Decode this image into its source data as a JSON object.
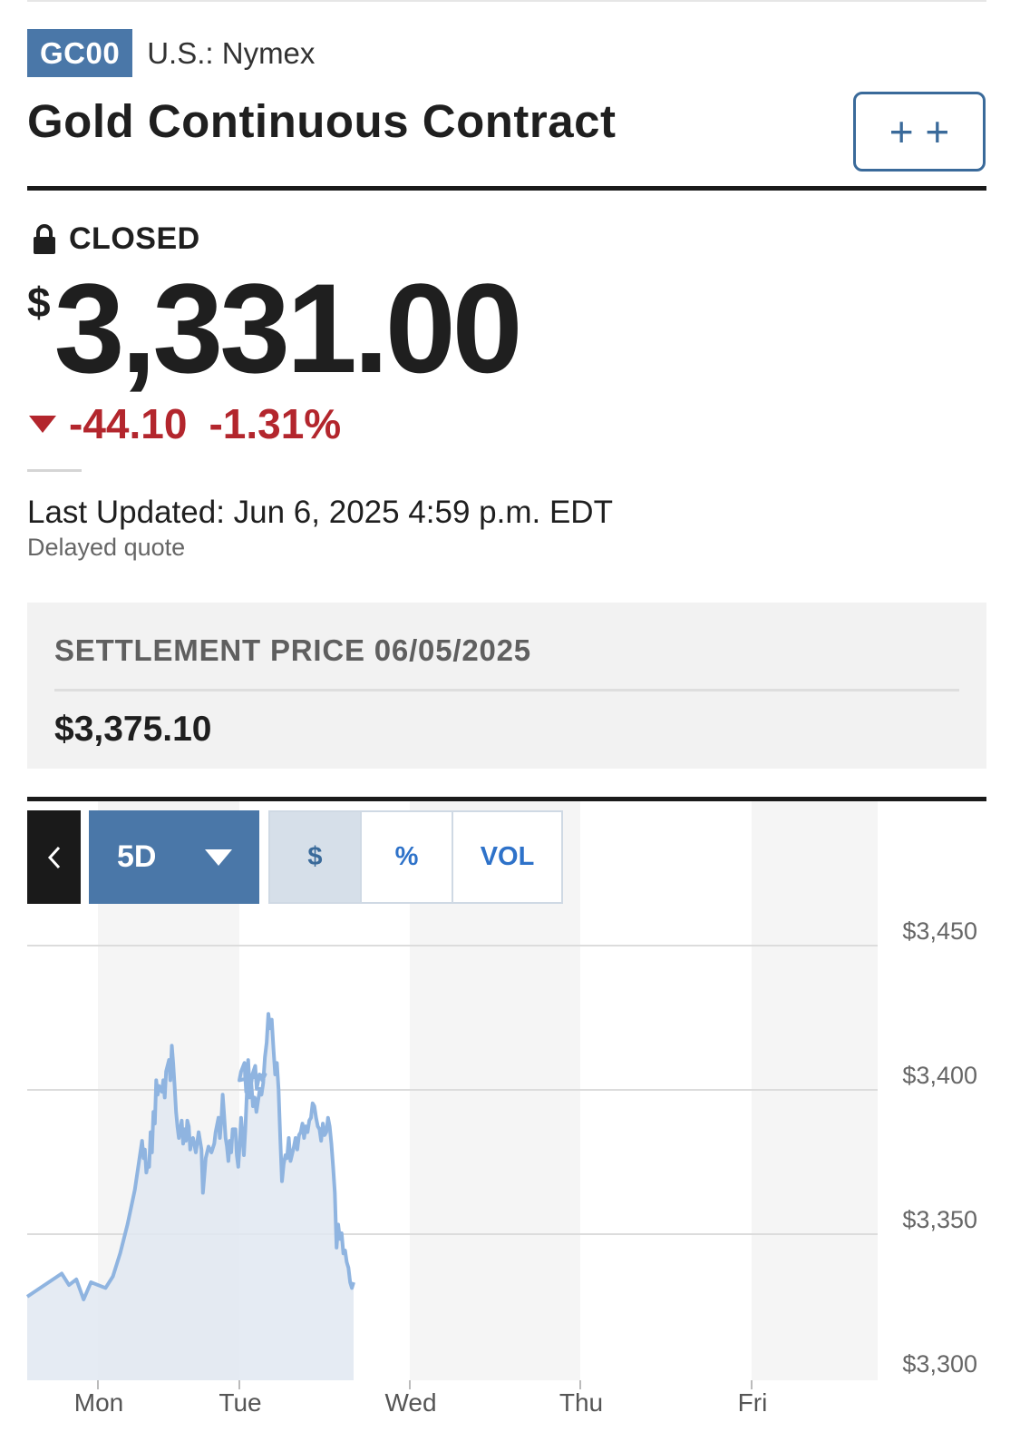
{
  "ticker": {
    "symbol": "GC00",
    "exchange": "U.S.: Nymex"
  },
  "title": "Gold Continuous Contract",
  "watchlist_button": {
    "label": "+ +"
  },
  "quote": {
    "status": "CLOSED",
    "currency_symbol": "$",
    "price": "3,331.00",
    "change": "-44.10",
    "change_percent": "-1.31%",
    "last_updated": "Last Updated: Jun 6, 2025 4:59 p.m. EDT",
    "delay_note": "Delayed quote"
  },
  "settlement": {
    "label": "SETTLEMENT PRICE 06/05/2025",
    "value": "$3,375.10"
  },
  "chart_controls": {
    "range_label": "5D",
    "segments": [
      {
        "label": "$",
        "selected": true
      },
      {
        "label": "%",
        "selected": false
      },
      {
        "label": "VOL",
        "selected": false
      }
    ]
  },
  "colors": {
    "brand_blue": "#4a77a8",
    "negative": "#b3262d",
    "line": "#8fb4e0",
    "area": "#e1e8f1"
  },
  "icons": {
    "status": "lock-icon",
    "change": "down-triangle-icon",
    "back": "chevron-left-icon",
    "range": "caret-down-icon"
  },
  "chart_data": {
    "type": "area",
    "x_labels": [
      "Mon",
      "Tue",
      "Wed",
      "Thu",
      "Fri"
    ],
    "y_ticks": [
      "$3,450",
      "$3,400",
      "$3,350",
      "$3,300"
    ],
    "ylim": [
      3300,
      3450
    ],
    "grid": true,
    "series": [
      {
        "values": [
          [
            0.0,
            3323
          ],
          [
            0.01,
            3331
          ],
          [
            0.02,
            3327
          ],
          [
            0.03,
            3329
          ],
          [
            0.04,
            3322
          ],
          [
            0.05,
            3328
          ],
          [
            0.07,
            3326
          ],
          [
            0.08,
            3330
          ],
          [
            0.09,
            3338
          ],
          [
            0.1,
            3348
          ],
          [
            0.11,
            3360
          ],
          [
            0.12,
            3377
          ],
          [
            0.13,
            3371
          ],
          [
            0.14,
            3374
          ],
          [
            0.15,
            3366
          ],
          [
            0.16,
            3369
          ],
          [
            0.17,
            3368
          ],
          [
            0.18,
            3380
          ],
          [
            0.19,
            3373
          ],
          [
            0.2,
            3387
          ],
          [
            0.21,
            3383
          ],
          [
            0.22,
            3398
          ],
          [
            0.23,
            3393
          ],
          [
            0.24,
            3396
          ],
          [
            0.26,
            3394
          ],
          [
            0.27,
            3398
          ],
          [
            0.28,
            3392
          ],
          [
            0.29,
            3401
          ],
          [
            0.31,
            3405
          ],
          [
            0.32,
            3398
          ],
          [
            0.33,
            3410
          ],
          [
            0.34,
            3404
          ],
          [
            0.35,
            3396
          ],
          [
            0.36,
            3387
          ],
          [
            0.37,
            3382
          ],
          [
            0.38,
            3378
          ],
          [
            0.4,
            3384
          ],
          [
            0.41,
            3376
          ],
          [
            0.42,
            3381
          ],
          [
            0.43,
            3377
          ],
          [
            0.44,
            3384
          ],
          [
            0.45,
            3382
          ],
          [
            0.46,
            3374
          ],
          [
            0.47,
            3377
          ],
          [
            0.48,
            3378
          ],
          [
            0.5,
            3373
          ],
          [
            0.52,
            3380
          ],
          [
            0.54,
            3374
          ],
          [
            0.55,
            3359
          ],
          [
            0.56,
            3365
          ],
          [
            0.57,
            3371
          ],
          [
            0.59,
            3375
          ],
          [
            0.61,
            3373
          ],
          [
            0.63,
            3376
          ],
          [
            0.64,
            3380
          ],
          [
            0.66,
            3385
          ],
          [
            0.67,
            3378
          ],
          [
            0.68,
            3384
          ],
          [
            0.69,
            3393
          ],
          [
            0.7,
            3386
          ],
          [
            0.71,
            3378
          ],
          [
            0.72,
            3375
          ],
          [
            0.73,
            3370
          ],
          [
            0.74,
            3377
          ],
          [
            0.75,
            3373
          ],
          [
            0.76,
            3381
          ],
          [
            0.78,
            3381
          ],
          [
            0.79,
            3372
          ],
          [
            0.8,
            3368
          ],
          [
            0.81,
            3376
          ],
          [
            0.82,
            3385
          ],
          [
            0.84,
            3372
          ],
          [
            0.85,
            3381
          ],
          [
            0.86,
            3393
          ],
          [
            0.87,
            3405
          ],
          [
            0.88,
            3396
          ],
          [
            0.89,
            3396
          ],
          [
            0.9,
            3400
          ],
          [
            0.92,
            3403
          ],
          [
            0.93,
            3395
          ],
          [
            0.95,
            3400
          ],
          [
            0.97,
            3398
          ],
          [
            0.99,
            3400
          ],
          [
            1.0,
            3398
          ],
          [
            1.01,
            3401
          ],
          [
            1.03,
            3404
          ],
          [
            1.04,
            3394
          ],
          [
            1.05,
            3396
          ],
          [
            1.06,
            3392
          ],
          [
            1.07,
            3397
          ],
          [
            1.08,
            3389
          ],
          [
            1.09,
            3392
          ],
          [
            1.1,
            3387
          ],
          [
            1.11,
            3391
          ],
          [
            1.12,
            3395
          ],
          [
            1.13,
            3393
          ],
          [
            1.14,
            3397
          ],
          [
            1.15,
            3406
          ],
          [
            1.16,
            3411
          ],
          [
            1.17,
            3421
          ],
          [
            1.18,
            3416
          ],
          [
            1.19,
            3419
          ],
          [
            1.2,
            3409
          ],
          [
            1.21,
            3400
          ],
          [
            1.22,
            3404
          ],
          [
            1.23,
            3395
          ],
          [
            1.24,
            3378
          ],
          [
            1.25,
            3363
          ],
          [
            1.26,
            3369
          ],
          [
            1.27,
            3372
          ],
          [
            1.28,
            3371
          ],
          [
            1.29,
            3378
          ],
          [
            1.3,
            3370
          ],
          [
            1.32,
            3375
          ],
          [
            1.33,
            3378
          ],
          [
            1.34,
            3374
          ],
          [
            1.35,
            3379
          ],
          [
            1.36,
            3380
          ],
          [
            1.37,
            3383
          ],
          [
            1.38,
            3378
          ],
          [
            1.39,
            3382
          ],
          [
            1.4,
            3380
          ],
          [
            1.41,
            3384
          ],
          [
            1.42,
            3385
          ],
          [
            1.43,
            3390
          ],
          [
            1.44,
            3389
          ],
          [
            1.45,
            3385
          ],
          [
            1.46,
            3382
          ],
          [
            1.47,
            3381
          ],
          [
            1.48,
            3377
          ],
          [
            1.49,
            3383
          ],
          [
            1.5,
            3379
          ],
          [
            1.51,
            3380
          ],
          [
            1.52,
            3385
          ],
          [
            1.53,
            3382
          ],
          [
            1.54,
            3376
          ],
          [
            1.55,
            3368
          ],
          [
            1.56,
            3359
          ],
          [
            1.57,
            3340
          ],
          [
            1.58,
            3348
          ],
          [
            1.59,
            3343
          ],
          [
            1.6,
            3345
          ],
          [
            1.61,
            3338
          ],
          [
            1.62,
            3339
          ],
          [
            1.63,
            3335
          ],
          [
            1.64,
            3333
          ],
          [
            1.65,
            3328
          ],
          [
            1.66,
            3326
          ],
          [
            1.67,
            3328
          ]
        ]
      }
    ]
  }
}
